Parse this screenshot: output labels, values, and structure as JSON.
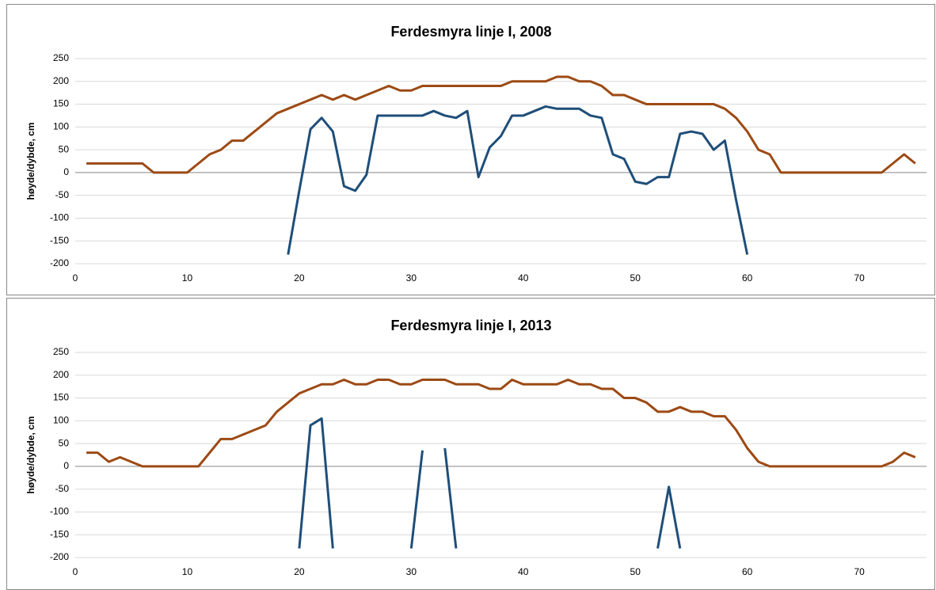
{
  "chart_data": [
    {
      "type": "line",
      "title": "Ferdesmyra linje I, 2008",
      "y_label": "høyde/dybde, cm",
      "x": [
        1,
        2,
        3,
        4,
        5,
        6,
        7,
        8,
        9,
        10,
        11,
        12,
        13,
        14,
        15,
        16,
        17,
        18,
        19,
        20,
        21,
        22,
        23,
        24,
        25,
        26,
        27,
        28,
        29,
        30,
        31,
        32,
        33,
        34,
        35,
        36,
        37,
        38,
        39,
        40,
        41,
        42,
        43,
        44,
        45,
        46,
        47,
        48,
        49,
        50,
        51,
        52,
        53,
        54,
        55,
        56,
        57,
        58,
        59,
        60,
        61,
        62,
        63,
        64,
        65,
        66,
        67,
        68,
        69,
        70,
        71,
        72,
        73,
        74,
        75
      ],
      "series": [
        {
          "color": "#9c4a14",
          "values": [
            20,
            20,
            20,
            20,
            20,
            20,
            0,
            0,
            0,
            0,
            20,
            40,
            50,
            70,
            70,
            90,
            110,
            130,
            140,
            150,
            160,
            170,
            160,
            170,
            160,
            170,
            180,
            190,
            180,
            180,
            190,
            190,
            190,
            190,
            190,
            190,
            190,
            190,
            200,
            200,
            200,
            200,
            210,
            210,
            200,
            200,
            190,
            170,
            170,
            160,
            150,
            150,
            150,
            150,
            150,
            150,
            150,
            140,
            120,
            90,
            50,
            40,
            0,
            0,
            0,
            0,
            0,
            0,
            0,
            0,
            0,
            0,
            20,
            40,
            20
          ]
        },
        {
          "color": "#1f4e79",
          "values": [
            null,
            null,
            null,
            null,
            null,
            null,
            null,
            null,
            null,
            null,
            null,
            null,
            null,
            null,
            null,
            null,
            null,
            null,
            -180,
            -40,
            95,
            120,
            90,
            -30,
            -40,
            -5,
            125,
            125,
            125,
            125,
            125,
            135,
            125,
            120,
            135,
            -10,
            55,
            80,
            125,
            125,
            135,
            145,
            140,
            140,
            140,
            125,
            120,
            40,
            30,
            -20,
            -25,
            -10,
            -10,
            85,
            90,
            85,
            50,
            70,
            -60,
            -180,
            null,
            null,
            null,
            null,
            null,
            null,
            null,
            null,
            null,
            null,
            null,
            null,
            null,
            null,
            null
          ]
        }
      ],
      "xlim": [
        0,
        76
      ],
      "xticks": [
        0,
        10,
        20,
        30,
        40,
        50,
        60,
        70
      ],
      "ylim": [
        -200,
        250
      ],
      "yticks": [
        -200,
        -150,
        -100,
        -50,
        0,
        50,
        100,
        150,
        200,
        250
      ],
      "grid": true
    },
    {
      "type": "line",
      "title": "Ferdesmyra linje I, 2013",
      "y_label": "høyde/dybde, cm",
      "x": [
        1,
        2,
        3,
        4,
        5,
        6,
        7,
        8,
        9,
        10,
        11,
        12,
        13,
        14,
        15,
        16,
        17,
        18,
        19,
        20,
        21,
        22,
        23,
        24,
        25,
        26,
        27,
        28,
        29,
        30,
        31,
        32,
        33,
        34,
        35,
        36,
        37,
        38,
        39,
        40,
        41,
        42,
        43,
        44,
        45,
        46,
        47,
        48,
        49,
        50,
        51,
        52,
        53,
        54,
        55,
        56,
        57,
        58,
        59,
        60,
        61,
        62,
        63,
        64,
        65,
        66,
        67,
        68,
        69,
        70,
        71,
        72,
        73,
        74,
        75
      ],
      "series": [
        {
          "color": "#9c4a14",
          "values": [
            30,
            30,
            10,
            20,
            10,
            0,
            0,
            0,
            0,
            0,
            0,
            30,
            60,
            60,
            70,
            80,
            90,
            120,
            140,
            160,
            170,
            180,
            180,
            190,
            180,
            180,
            190,
            190,
            180,
            180,
            190,
            190,
            190,
            180,
            180,
            180,
            170,
            170,
            190,
            180,
            180,
            180,
            180,
            190,
            180,
            180,
            170,
            170,
            150,
            150,
            140,
            120,
            120,
            130,
            120,
            120,
            110,
            110,
            80,
            40,
            10,
            0,
            0,
            0,
            0,
            0,
            0,
            0,
            0,
            0,
            0,
            0,
            10,
            30,
            20
          ]
        },
        {
          "color": "#1f4e79",
          "values": [
            null,
            null,
            null,
            null,
            null,
            null,
            null,
            null,
            null,
            null,
            null,
            null,
            null,
            null,
            null,
            null,
            null,
            null,
            null,
            -180,
            90,
            105,
            -180,
            null,
            null,
            null,
            null,
            null,
            null,
            -180,
            35,
            null,
            40,
            -180,
            null,
            null,
            null,
            null,
            null,
            null,
            null,
            null,
            null,
            null,
            null,
            null,
            null,
            null,
            null,
            null,
            null,
            -180,
            -45,
            -180,
            null,
            null,
            null,
            null,
            null,
            null,
            null,
            null,
            null,
            null,
            null,
            null,
            null,
            null,
            null,
            null,
            null,
            null,
            null,
            null,
            null
          ]
        }
      ],
      "xlim": [
        0,
        76
      ],
      "xticks": [
        0,
        10,
        20,
        30,
        40,
        50,
        60,
        70
      ],
      "ylim": [
        -200,
        250
      ],
      "yticks": [
        -200,
        -150,
        -100,
        -50,
        0,
        50,
        100,
        150,
        200,
        250
      ],
      "grid": true
    }
  ]
}
